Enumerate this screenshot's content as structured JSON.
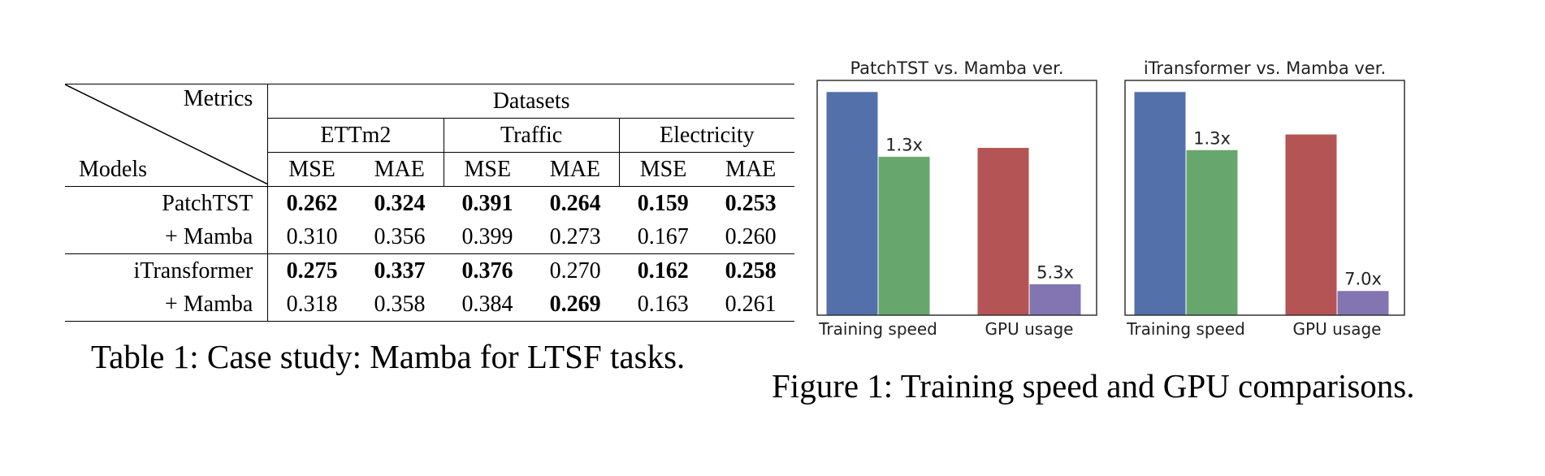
{
  "table": {
    "corner_top": "Metrics",
    "corner_bottom": "Models",
    "datasets_header": "Datasets",
    "groups": [
      "ETTm2",
      "Traffic",
      "Electricity"
    ],
    "metrics": [
      "MSE",
      "MAE",
      "MSE",
      "MAE",
      "MSE",
      "MAE"
    ],
    "rows": [
      {
        "model": "PatchTST",
        "values": [
          "0.262",
          "0.324",
          "0.391",
          "0.264",
          "0.159",
          "0.253"
        ],
        "bold": [
          true,
          true,
          true,
          true,
          true,
          true
        ]
      },
      {
        "model": "+ Mamba",
        "values": [
          "0.310",
          "0.356",
          "0.399",
          "0.273",
          "0.167",
          "0.260"
        ],
        "bold": [
          false,
          false,
          false,
          false,
          false,
          false
        ]
      },
      {
        "model": "iTransformer",
        "values": [
          "0.275",
          "0.337",
          "0.376",
          "0.270",
          "0.162",
          "0.258"
        ],
        "bold": [
          true,
          true,
          true,
          false,
          true,
          true
        ]
      },
      {
        "model": "+ Mamba",
        "values": [
          "0.318",
          "0.358",
          "0.384",
          "0.269",
          "0.163",
          "0.261"
        ],
        "bold": [
          false,
          false,
          false,
          true,
          false,
          false
        ]
      }
    ],
    "caption": "Table 1: Case study: Mamba for LTSF tasks."
  },
  "figure": {
    "caption": "Figure 1: Training speed and GPU comparisons."
  },
  "chart_data": [
    {
      "type": "bar",
      "title": "PatchTST vs. Mamba ver.",
      "categories": [
        "Training speed",
        "GPU usage"
      ],
      "series": [
        {
          "values": [
            1.0,
            0.71
          ],
          "colors": [
            "#5470ab",
            "#67a76e"
          ]
        },
        {
          "values": [
            0.75,
            0.14
          ],
          "colors": [
            "#b55454",
            "#8375b1"
          ]
        }
      ],
      "annotations": [
        "1.3x",
        "5.3x"
      ],
      "ylim": [
        0,
        1.05
      ],
      "xlabel": "",
      "ylabel": ""
    },
    {
      "type": "bar",
      "title": "iTransformer  vs. Mamba ver.",
      "categories": [
        "Training speed",
        "GPU usage"
      ],
      "series": [
        {
          "values": [
            1.0,
            0.74
          ],
          "colors": [
            "#5470ab",
            "#67a76e"
          ]
        },
        {
          "values": [
            0.81,
            0.11
          ],
          "colors": [
            "#b55454",
            "#8375b1"
          ]
        }
      ],
      "annotations": [
        "1.3x",
        "7.0x"
      ],
      "ylim": [
        0,
        1.05
      ],
      "xlabel": "",
      "ylabel": ""
    }
  ]
}
